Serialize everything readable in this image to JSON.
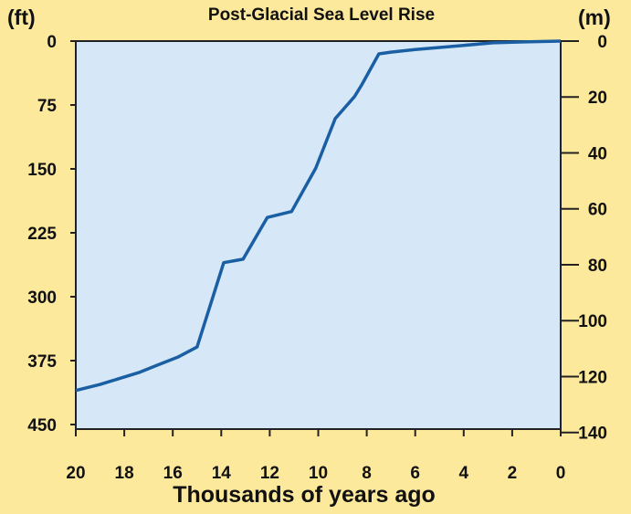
{
  "chart_data": {
    "type": "line",
    "title": "Post-Glacial Sea Level Rise",
    "xlabel": "Thousands of years ago",
    "ylabel_left": "(ft)",
    "ylabel_right": "(m)",
    "xlim": [
      20,
      0
    ],
    "ylim_left": [
      0,
      450
    ],
    "ylim_right": [
      0,
      140
    ],
    "y_inverted": true,
    "x_ticks": [
      20,
      18,
      16,
      14,
      12,
      10,
      8,
      6,
      4,
      2,
      0
    ],
    "y_ticks_left": [
      0,
      75,
      150,
      225,
      300,
      375,
      450
    ],
    "y_ticks_right": [
      0,
      20,
      40,
      60,
      80,
      100,
      120,
      140
    ],
    "grid": false,
    "colors": {
      "background": "#fde99c",
      "plot_area": "#d6e8f7",
      "line": "#1a5fa3"
    },
    "series": [
      {
        "x": [
          20,
          19,
          18.2,
          17.4,
          16.7,
          15.8,
          15.0,
          13.9,
          13.1,
          12.1,
          11.1,
          10.1,
          9.3,
          8.5,
          8.2,
          7.5,
          7.0,
          6.0,
          5.0,
          4.0,
          2.8,
          1.5,
          0
        ],
        "y": [
          410,
          403,
          396,
          389,
          381,
          371,
          359,
          260,
          256,
          207,
          200,
          149,
          91,
          65,
          51,
          15,
          13,
          10,
          7.5,
          5,
          2,
          1,
          0
        ]
      }
    ]
  }
}
